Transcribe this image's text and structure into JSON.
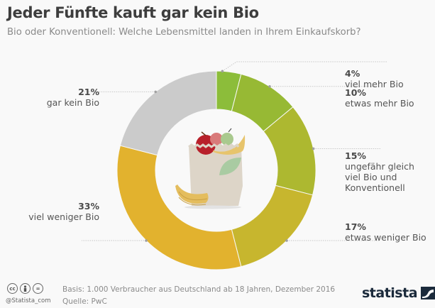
{
  "header": {
    "title": "Jeder Fünfte kauft gar kein Bio",
    "subtitle": "Bio oder Konventionell: Welche Lebensmittel landen in Ihrem Einkaufskorb?"
  },
  "chart_data": {
    "type": "pie",
    "title": "Jeder Fünfte kauft gar kein Bio",
    "subtitle": "Bio oder Konventionell: Welche Lebensmittel landen in Ihrem Einkaufskorb?",
    "donut": true,
    "unit": "%",
    "slices": [
      {
        "label": "viel mehr Bio",
        "value": 4,
        "value_label": "4%",
        "color": "#8cbd3a"
      },
      {
        "label": "etwas mehr Bio",
        "value": 10,
        "value_label": "10%",
        "color": "#97b934"
      },
      {
        "label": "ungefähr gleich viel Bio und Konventionell",
        "label_lines": [
          "ungefähr gleich",
          "viel Bio und",
          "Konventionell"
        ],
        "value": 15,
        "value_label": "15%",
        "color": "#adb830"
      },
      {
        "label": "etwas weniger Bio",
        "value": 17,
        "value_label": "17%",
        "color": "#c7b62e"
      },
      {
        "label": "viel weniger Bio",
        "value": 33,
        "value_label": "33%",
        "color": "#e2b22e"
      },
      {
        "label": "gar kein Bio",
        "value": 21,
        "value_label": "21%",
        "color": "#cbcbcb"
      }
    ],
    "center_illustration": "shopping-bag-with-fruit"
  },
  "footer": {
    "basis": "Basis: 1.000 Verbraucher aus Deutschland ab 18 Jahren, Dezember 2016",
    "source": "Quelle: PwC",
    "handle": "@Statista_com",
    "license_icons": [
      "cc-icon",
      "by-icon",
      "nd-icon"
    ],
    "license_glyphs": [
      "cc",
      "",
      "="
    ],
    "brand": "statista"
  }
}
